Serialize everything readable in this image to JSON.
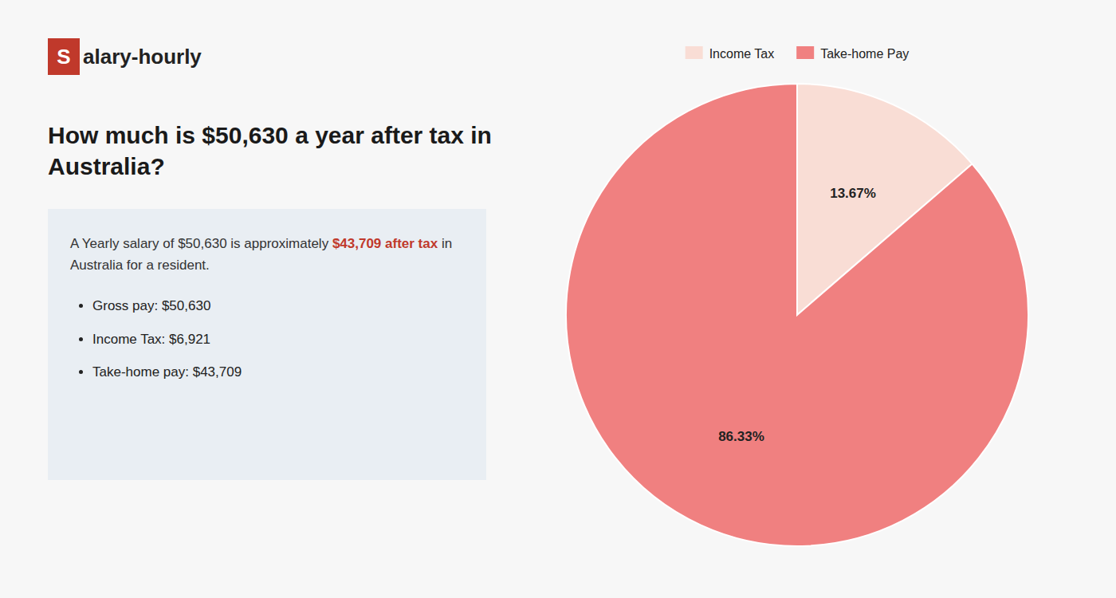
{
  "chart_data": {
    "type": "pie",
    "title": "How much is $50,630 a year after tax in Australia?",
    "categories": [
      "Income Tax",
      "Take-home Pay"
    ],
    "values": [
      13.67,
      86.33
    ],
    "value_labels": [
      "13.67%",
      "86.33%"
    ],
    "colors": [
      "#f9ddd5",
      "#f08080"
    ],
    "data_labels": true,
    "legend": "top",
    "annotations": [
      {
        "text": "S",
        "color": "#c0392b"
      },
      {
        "text": "alary-hourly"
      },
      {
        "text": "A Yearly salary of $50,630 is approximately "
      },
      {
        "text": "$43,709 after tax",
        "color": "#c0392b"
      },
      {
        "text": " in"
      },
      {
        "text": "Australia for a resident."
      },
      {
        "text": "Gross pay: $50,630"
      },
      {
        "text": "Income Tax: $6,921"
      },
      {
        "text": "Take-home pay: $43,709"
      }
    ]
  }
}
